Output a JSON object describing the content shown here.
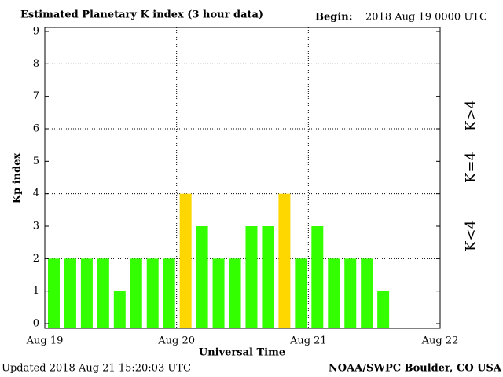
{
  "chart_data": {
    "type": "bar",
    "title": "Estimated Planetary K index (3 hour data)",
    "begin_label": "Begin:",
    "begin_value": "2018 Aug 19 0000 UTC",
    "xlabel": "Universal Time",
    "ylabel": "Kp index",
    "xticks": [
      "Aug 19",
      "Aug 20",
      "Aug 21",
      "Aug 22"
    ],
    "values": [
      2,
      2,
      2,
      2,
      1,
      2,
      2,
      2,
      4,
      3,
      2,
      2,
      3,
      3,
      4,
      2,
      3,
      2,
      2,
      2,
      1
    ],
    "bar_colors": [
      "#33ff00",
      "#33ff00",
      "#33ff00",
      "#33ff00",
      "#33ff00",
      "#33ff00",
      "#33ff00",
      "#33ff00",
      "#ffd700",
      "#33ff00",
      "#33ff00",
      "#33ff00",
      "#33ff00",
      "#33ff00",
      "#ffd700",
      "#33ff00",
      "#33ff00",
      "#33ff00",
      "#33ff00",
      "#33ff00",
      "#33ff00"
    ],
    "ylim": [
      0,
      9
    ],
    "yticks": [
      0,
      1,
      2,
      3,
      4,
      5,
      6,
      7,
      8,
      9
    ],
    "ygrid": [
      2,
      4,
      6,
      8
    ],
    "legend": [
      {
        "label": "K<4",
        "color": "#33ff00"
      },
      {
        "label": "K=4",
        "color": "#ffd700"
      },
      {
        "label": "K>4",
        "color": "#ff3300"
      }
    ],
    "updated": "Updated 2018 Aug 21 15:20:03 UTC",
    "source": "NOAA/SWPC Boulder, CO USA"
  }
}
